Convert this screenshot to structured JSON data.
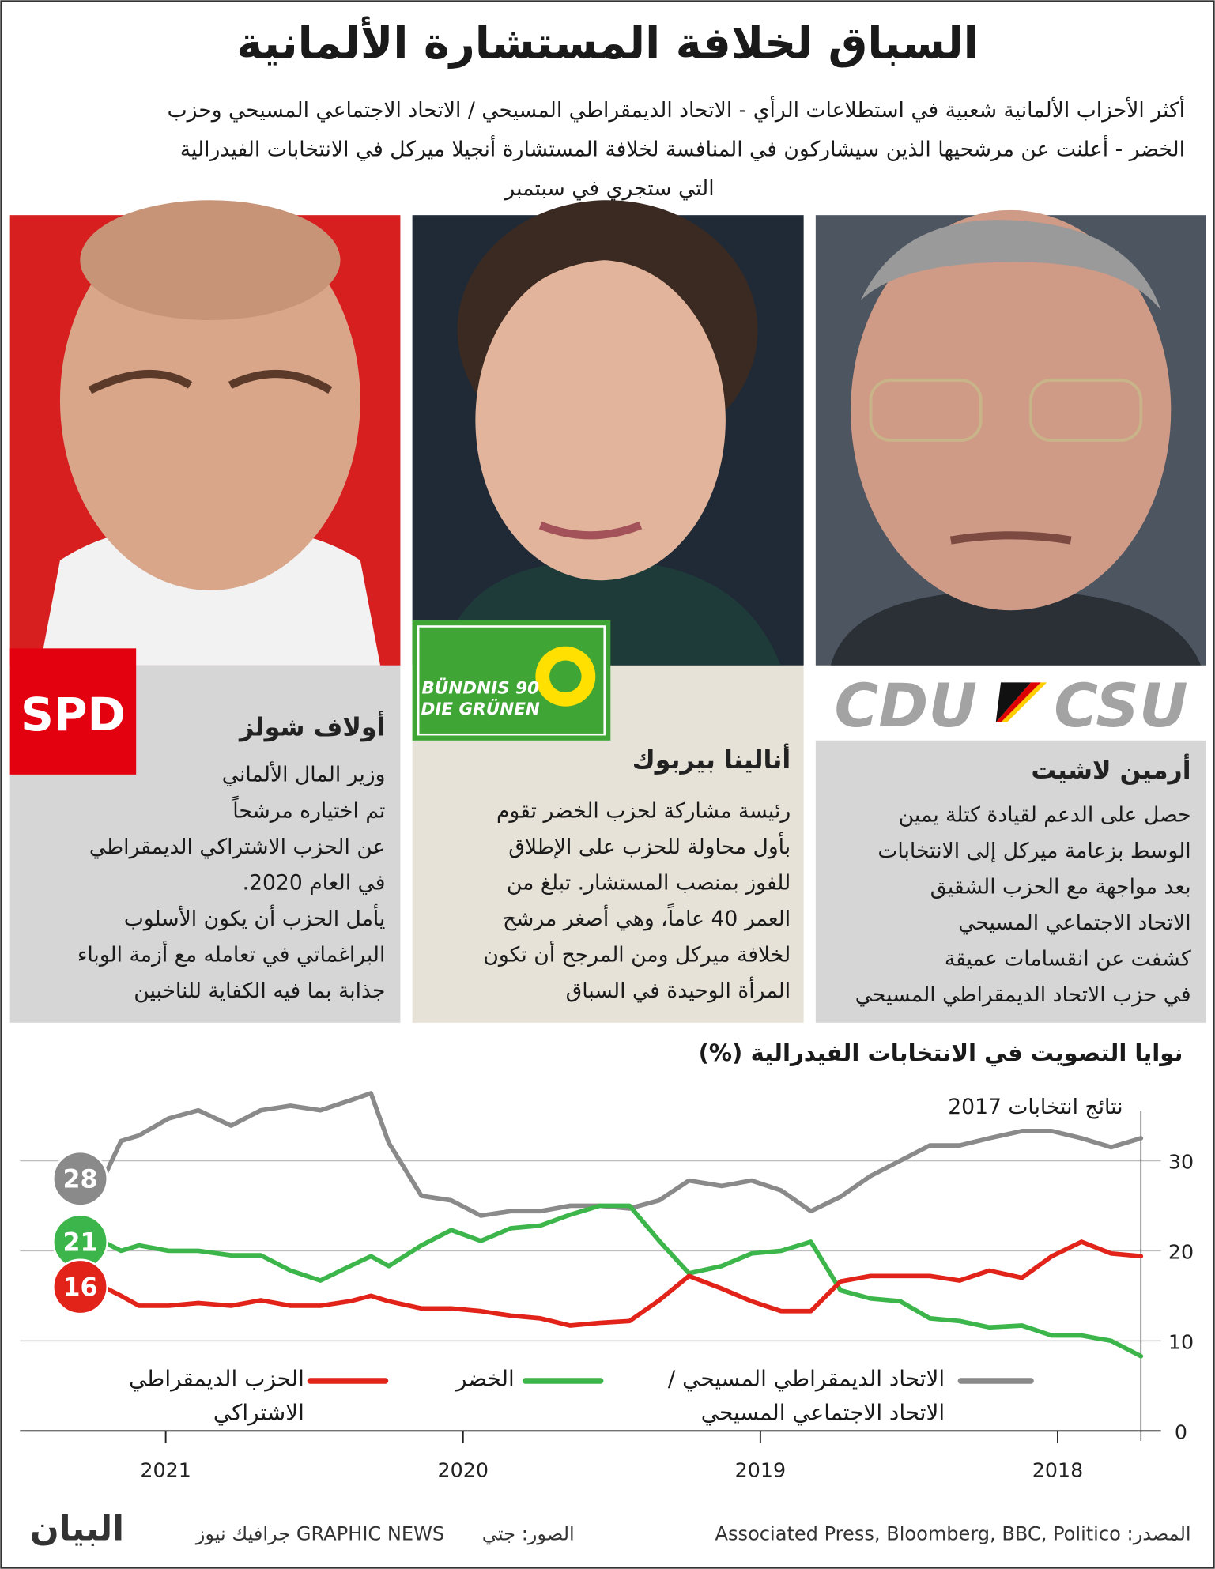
{
  "header": {
    "title": "السباق لخلافة المستشارة الألمانية",
    "subtitle": [
      "أكثر الأحزاب الألمانية شعبية في استطلاعات الرأي - الاتحاد الديمقراطي المسيحي / الاتحاد الاجتماعي المسيحي  وحزب",
      "الخضر - أعلنت عن مرشحيها الذين سيشاركون في المنافسة لخلافة المستشارة أنجيلا ميركل في الانتخابات الفيدرالية",
      "التي ستجري في سبتمبر"
    ]
  },
  "candidates": [
    {
      "name": "أولاف شولز",
      "logo": "SPD",
      "bio": [
        "وزير المال الألماني",
        "تم اختياره مرشحاً",
        "عن الحزب الاشتراكي  الديمقراطي",
        "في العام 2020.",
        "يأمل الحزب أن يكون الأسلوب",
        "البراغماتي في تعامله مع أزمة الوباء",
        "جذابة بما فيه الكفاية للناخبين"
      ]
    },
    {
      "name": "أنالينا بيربوك",
      "logo": [
        "BÜNDNIS 90",
        "DIE GRÜNEN"
      ],
      "bio": [
        "رئيسة مشاركة لحزب الخضر تقوم",
        "بأول محاولة للحزب على الإطلاق",
        "للفوز بمنصب المستشار. تبلغ من",
        "العمر 40 عاماً، وهي أصغر مرشح",
        "لخلافة ميركل ومن المرجح أن تكون",
        "المرأة الوحيدة في السباق"
      ]
    },
    {
      "name": "أرمين لاشيت",
      "logo": [
        "CDU",
        "CSU"
      ],
      "bio": [
        "حصل على الدعم لقيادة كتلة يمين",
        "الوسط بزعامة ميركل إلى الانتخابات",
        "بعد مواجهة مع الحزب الشقيق",
        "الاتحاد الاجتماعي المسيحي",
        "كشفت عن انقسامات عميقة",
        "في حزب الاتحاد الديمقراطي المسيحي"
      ]
    }
  ],
  "chart_data": {
    "type": "line",
    "title": "نوايا التصويت في الانتخابات الفيدرالية (%)",
    "annotation": "نتائج انتخابات 2017",
    "x": [
      2017.72,
      2017.82,
      2017.92,
      2018.02,
      2018.12,
      2018.23,
      2018.33,
      2018.43,
      2018.53,
      2018.63,
      2018.73,
      2018.83,
      2018.93,
      2019.03,
      2019.13,
      2019.24,
      2019.34,
      2019.44,
      2019.54,
      2019.64,
      2019.74,
      2019.84,
      2019.94,
      2020.04,
      2020.14,
      2020.25,
      2020.31,
      2020.38,
      2020.48,
      2020.58,
      2020.68,
      2020.78,
      2020.89,
      2020.99,
      2021.09,
      2021.15,
      2021.21
    ],
    "xlim": [
      2021.49,
      2017.72
    ],
    "xticks": [
      2018,
      2019,
      2020,
      2021
    ],
    "ylim": [
      0,
      38
    ],
    "yticks": [
      0,
      10,
      20,
      30
    ],
    "grid": true,
    "series": [
      {
        "name": "الاتحاد الديمقراطي المسيحي / الاتحاد الاجتماعي المسيحي",
        "color": "#8a8a8a",
        "values": [
          32.5,
          31.5,
          32.5,
          33.3,
          33.3,
          32.5,
          31.7,
          31.7,
          30,
          28.3,
          26,
          24.4,
          26.7,
          27.8,
          27.2,
          27.8,
          25.6,
          24.7,
          25,
          25,
          24.4,
          24.4,
          23.9,
          25.6,
          26.1,
          32,
          37.5,
          36.7,
          35.6,
          36.1,
          35.6,
          33.9,
          35.6,
          34.7,
          32.8,
          32.2,
          28
        ]
      },
      {
        "name": "الخضر",
        "color": "#3cb64a",
        "values": [
          8.3,
          10,
          10.6,
          10.6,
          11.7,
          11.5,
          12.2,
          12.5,
          14.4,
          14.7,
          15.6,
          21,
          20,
          19.7,
          18.3,
          17.5,
          21.1,
          25,
          25,
          24,
          22.8,
          22.5,
          21.1,
          22.3,
          20.6,
          18.3,
          19.4,
          18.3,
          16.7,
          17.8,
          19.5,
          19.5,
          20,
          20,
          20.6,
          20,
          21
        ]
      },
      {
        "name": "الحزب الديمقراطي الاشتراكي",
        "color": "#e2231a",
        "values": [
          19.4,
          19.7,
          21,
          19.4,
          17,
          17.8,
          16.7,
          17.2,
          17.2,
          17.2,
          16.6,
          13.3,
          13.3,
          14.4,
          15.8,
          17.2,
          14.5,
          12.2,
          12,
          11.7,
          12.5,
          12.8,
          13.3,
          13.6,
          13.6,
          14.4,
          15,
          14.4,
          13.9,
          13.9,
          14.5,
          13.9,
          14.2,
          13.9,
          13.9,
          15,
          16
        ]
      }
    ]
  },
  "footer": {
    "source": "المصدر: Associated Press, Bloomberg, BBC, Politico",
    "photos": "الصور: جتي",
    "agency": "GRAPHIC NEWS جرافيك نيوز",
    "brand": "البيان"
  }
}
